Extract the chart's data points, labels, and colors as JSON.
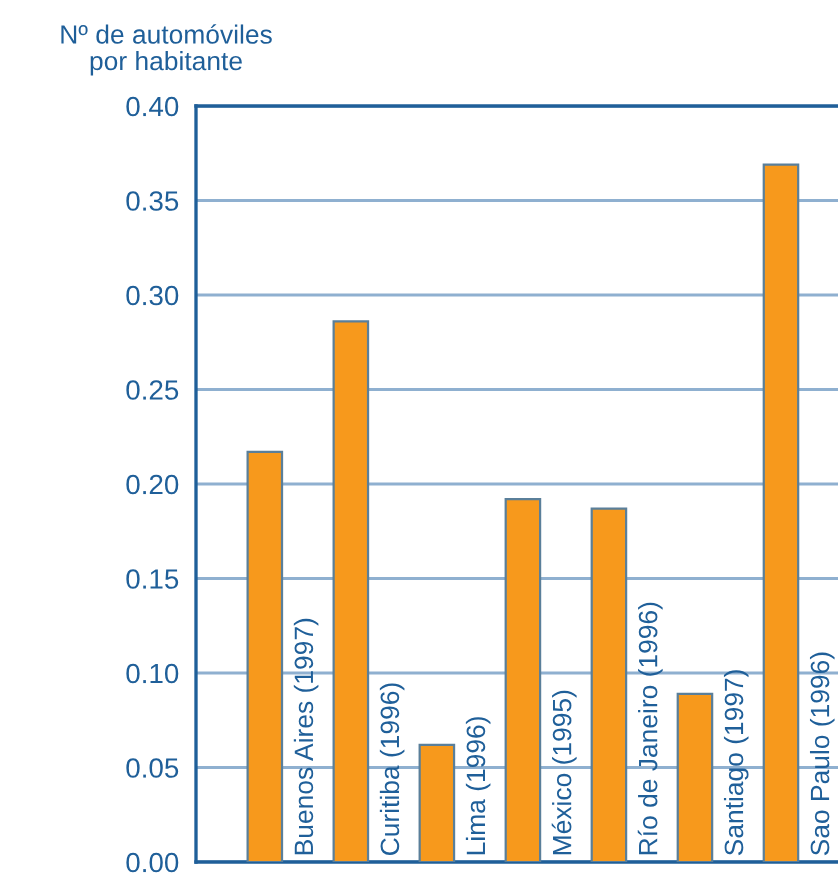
{
  "chart_data": {
    "type": "bar",
    "ylabel": "Nº de automóviles\npor habitante",
    "categories": [
      "Buenos Aires (1997)",
      "Curitiba (1996)",
      "Lima (1996)",
      "México (1995)",
      "Río de Janeiro (1996)",
      "Santiago (1997)",
      "Sao Paulo (1996)"
    ],
    "values": [
      0.217,
      0.286,
      0.062,
      0.192,
      0.187,
      0.089,
      0.369
    ],
    "color": "#f7991c",
    "ylim": [
      0,
      0.4
    ],
    "yticks": [
      {
        "value": 0,
        "label": "0.00"
      },
      {
        "value": 0.05,
        "label": "0.05"
      },
      {
        "value": 0.1,
        "label": "0.10"
      },
      {
        "value": 0.15,
        "label": "0.15"
      },
      {
        "value": 0.2,
        "label": "0.20"
      },
      {
        "value": 0.25,
        "label": "0.25"
      },
      {
        "value": 0.3,
        "label": "0.30"
      },
      {
        "value": 0.35,
        "label": "0.35"
      },
      {
        "value": 0.4,
        "label": "0.40"
      }
    ],
    "grid": "y"
  }
}
